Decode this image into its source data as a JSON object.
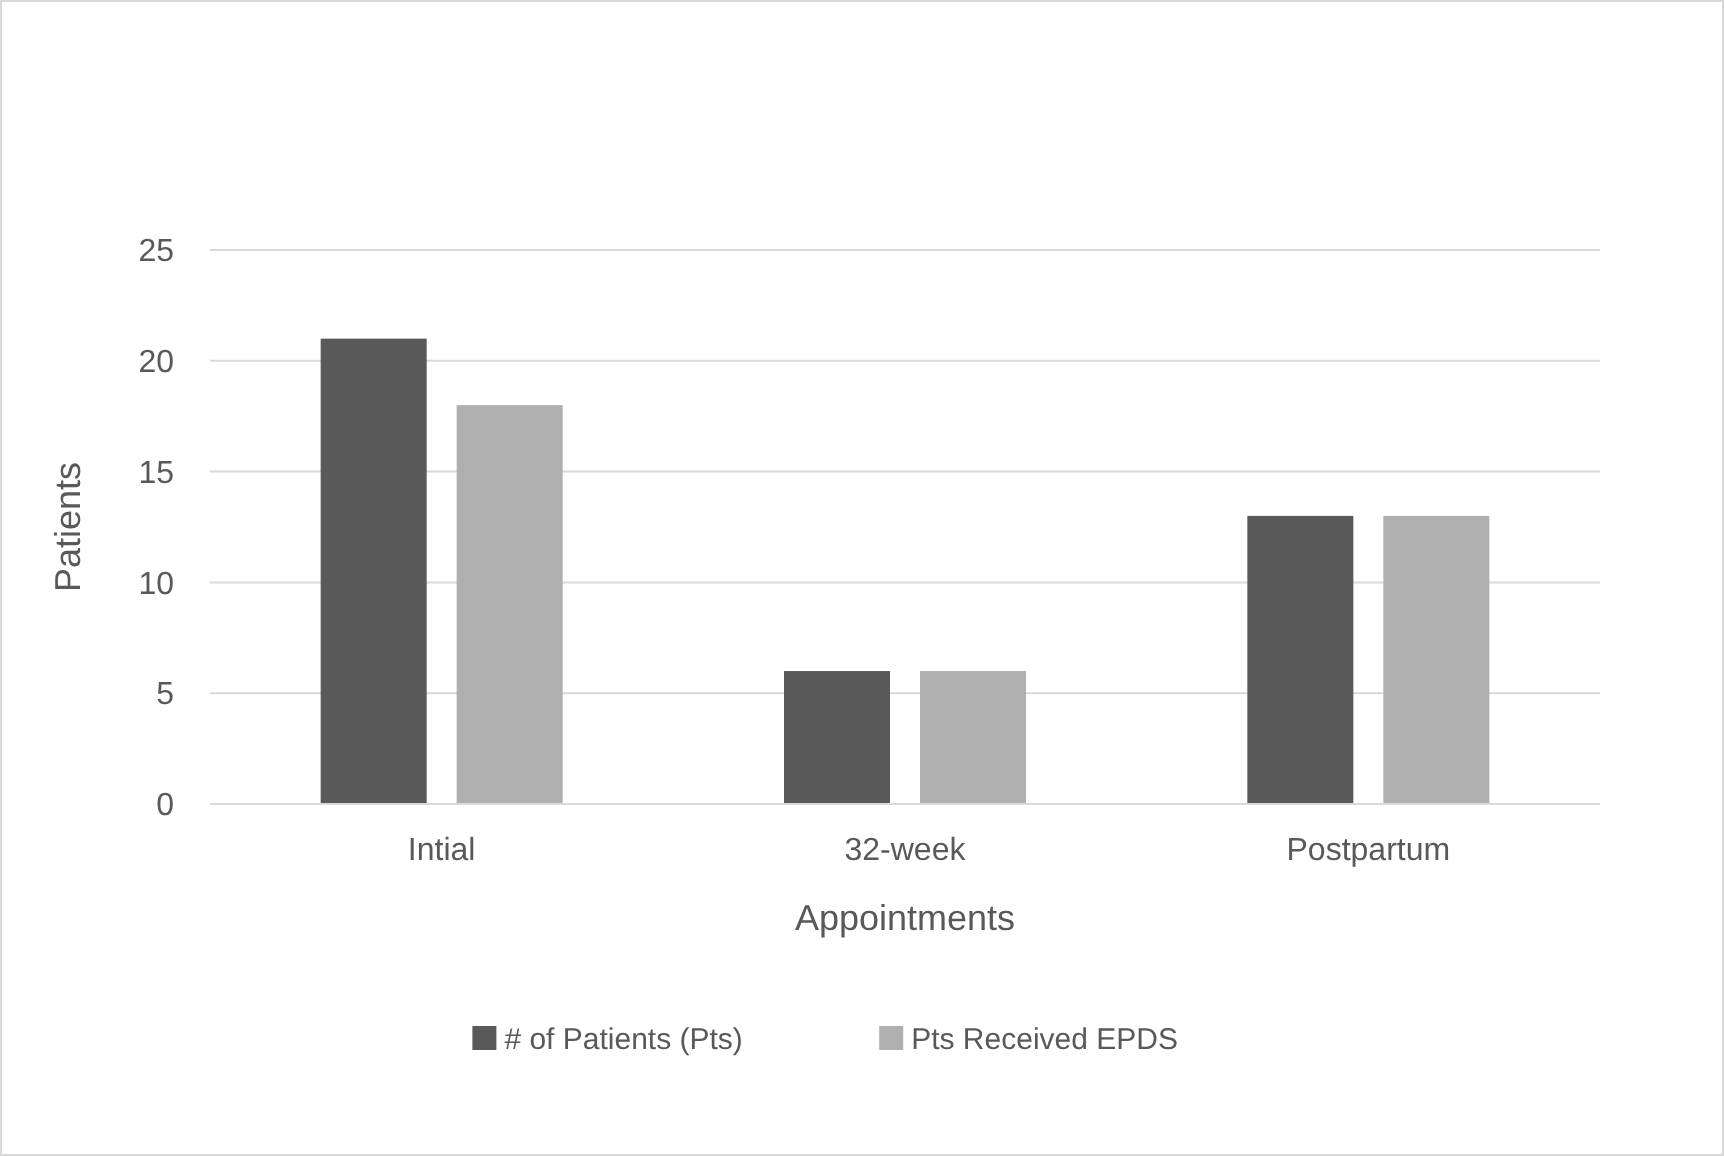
{
  "chart_data": {
    "type": "bar",
    "xlabel": "Appointments",
    "ylabel": "Patients",
    "categories": [
      "Intial",
      "32-week",
      "Postpartum"
    ],
    "series": [
      {
        "name": "# of Patients (Pts)",
        "color": "#595959",
        "values": [
          21,
          6,
          13
        ]
      },
      {
        "name": "Pts Received EPDS",
        "color": "#afafaf",
        "values": [
          18,
          6,
          13
        ]
      }
    ],
    "ylim": [
      0,
      25
    ],
    "yticks": [
      0,
      5,
      10,
      15,
      20,
      25
    ],
    "grid": "y",
    "legend": "bottom"
  }
}
